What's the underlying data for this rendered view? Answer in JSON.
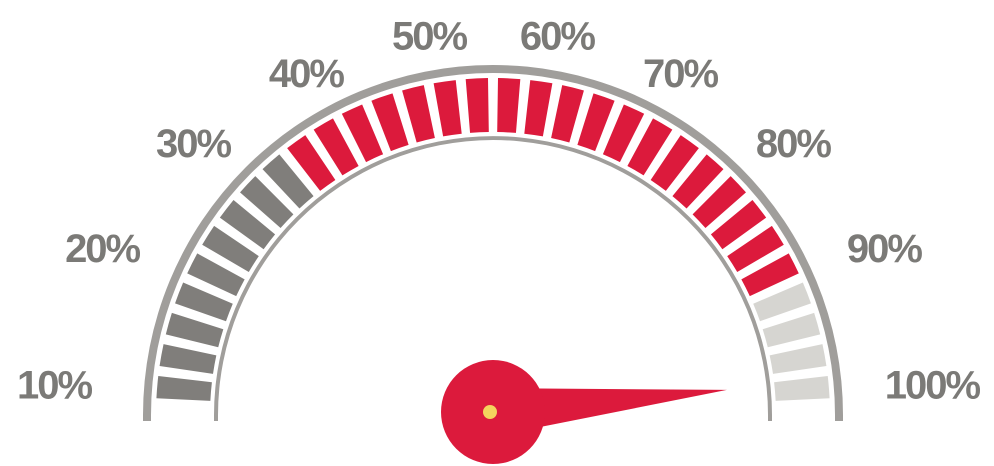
{
  "chart_data": {
    "type": "gauge",
    "tick_labels": [
      "10%",
      "20%",
      "30%",
      "40%",
      "50%",
      "60%",
      "70%",
      "80%",
      "90%",
      "100%"
    ],
    "segment_count": 32,
    "bands": [
      {
        "name": "gray",
        "from_segment": 0,
        "to_segment": 8,
        "color": "#807e7b"
      },
      {
        "name": "red",
        "from_segment": 9,
        "to_segment": 27,
        "color": "#dc1a3c"
      },
      {
        "name": "light",
        "from_segment": 28,
        "to_segment": 31,
        "color": "#d6d5d1"
      }
    ],
    "needle_value_fraction": 0.97,
    "frame_color": "#a09e9b",
    "needle_color": "#dc1a3c",
    "pivot_dot_color": "#f4d35e"
  }
}
